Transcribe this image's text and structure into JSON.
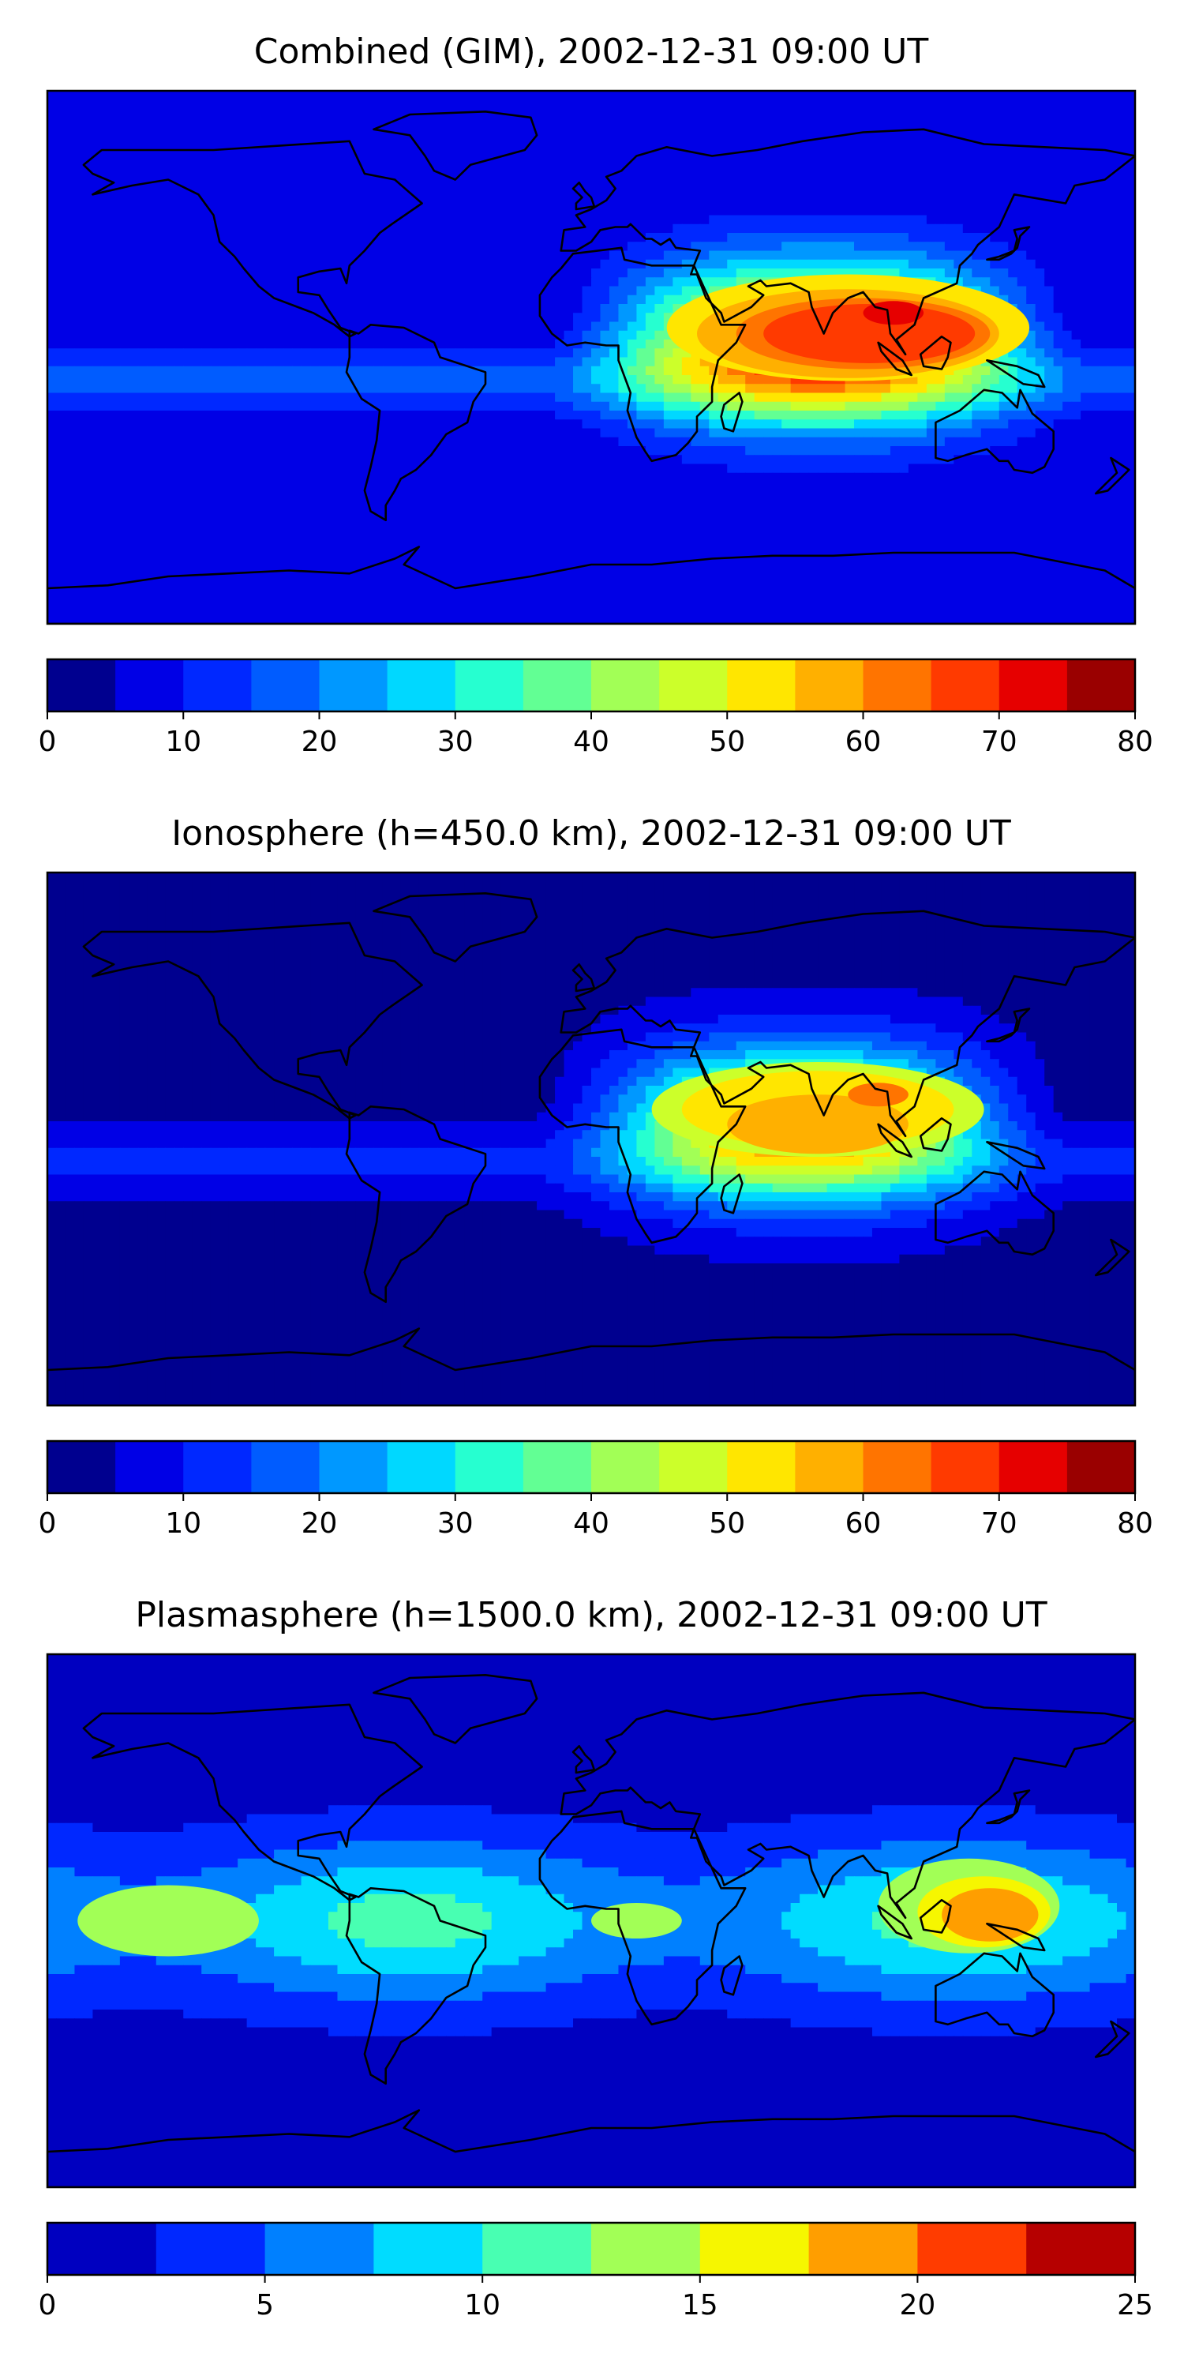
{
  "chart_data": [
    {
      "type": "heatmap",
      "title": "Combined (GIM), 2002-12-31 09:00 UT",
      "colorbar": {
        "levels": [
          0,
          5,
          10,
          15,
          20,
          25,
          30,
          35,
          40,
          45,
          50,
          55,
          60,
          65,
          70,
          75,
          80
        ],
        "tick_labels": [
          "0",
          "10",
          "20",
          "30",
          "40",
          "50",
          "60",
          "70",
          "80"
        ],
        "colors": [
          "#00008f",
          "#0000e6",
          "#0028ff",
          "#005cff",
          "#0098ff",
          "#00d8ff",
          "#26ffd0",
          "#62ff94",
          "#a2ff56",
          "#ccff2a",
          "#ffe600",
          "#ffb000",
          "#ff7400",
          "#ff3a00",
          "#e60000",
          "#9a0000"
        ]
      },
      "contours": [
        {
          "level": 50,
          "lon": 85,
          "lat": 10,
          "sx": 60,
          "sy": 18
        },
        {
          "level": 55,
          "lon": 85,
          "lat": 8,
          "sx": 50,
          "sy": 15
        },
        {
          "level": 60,
          "lon": 90,
          "lat": 8,
          "sx": 42,
          "sy": 12
        },
        {
          "level": 65,
          "lon": 92,
          "lat": 8,
          "sx": 35,
          "sy": 10
        },
        {
          "level": 70,
          "lon": 100,
          "lat": 15,
          "sx": 10,
          "sy": 4
        }
      ],
      "grid": false,
      "legend": "none"
    },
    {
      "type": "heatmap",
      "title": "Ionosphere  (h=450.0 km), 2002-12-31 09:00 UT",
      "colorbar": {
        "levels": [
          0,
          5,
          10,
          15,
          20,
          25,
          30,
          35,
          40,
          45,
          50,
          55,
          60,
          65,
          70,
          75,
          80
        ],
        "tick_labels": [
          "0",
          "10",
          "20",
          "30",
          "40",
          "50",
          "60",
          "70",
          "80"
        ],
        "colors": [
          "#00008f",
          "#0000e6",
          "#0028ff",
          "#005cff",
          "#0098ff",
          "#00d8ff",
          "#26ffd0",
          "#62ff94",
          "#a2ff56",
          "#ccff2a",
          "#ffe600",
          "#ffb000",
          "#ff7400",
          "#ff3a00",
          "#e60000",
          "#9a0000"
        ]
      },
      "contours": [
        {
          "level": 45,
          "lon": 75,
          "lat": 10,
          "sx": 55,
          "sy": 16
        },
        {
          "level": 50,
          "lon": 75,
          "lat": 10,
          "sx": 45,
          "sy": 13
        },
        {
          "level": 55,
          "lon": 75,
          "lat": 5,
          "sx": 30,
          "sy": 10
        },
        {
          "level": 60,
          "lon": 95,
          "lat": 15,
          "sx": 10,
          "sy": 4
        }
      ],
      "grid": false,
      "legend": "none"
    },
    {
      "type": "heatmap",
      "title": "Plasmasphere (h=1500.0 km), 2002-12-31 09:00 UT",
      "colorbar": {
        "levels": [
          0,
          2.5,
          5,
          7.5,
          10,
          12.5,
          15,
          17.5,
          20,
          22.5,
          25
        ],
        "tick_labels": [
          "0",
          "5",
          "10",
          "15",
          "20",
          "25"
        ],
        "colors": [
          "#0000c0",
          "#0028ff",
          "#0080ff",
          "#00dcff",
          "#48ffb2",
          "#a2ff56",
          "#f6f600",
          "#ff9e00",
          "#ff3c00",
          "#b60000"
        ]
      },
      "contours": [
        {
          "level": 12.5,
          "lon": 125,
          "lat": 5,
          "sx": 30,
          "sy": 16
        },
        {
          "level": 15,
          "lon": 130,
          "lat": 3,
          "sx": 22,
          "sy": 12
        },
        {
          "level": 17.5,
          "lon": 132,
          "lat": 2,
          "sx": 16,
          "sy": 9
        },
        {
          "level": 12.5,
          "lon": -140,
          "lat": 0,
          "sx": 30,
          "sy": 12
        },
        {
          "level": 12.5,
          "lon": 15,
          "lat": 0,
          "sx": 15,
          "sy": 6
        }
      ],
      "grid": false,
      "legend": "none"
    }
  ]
}
